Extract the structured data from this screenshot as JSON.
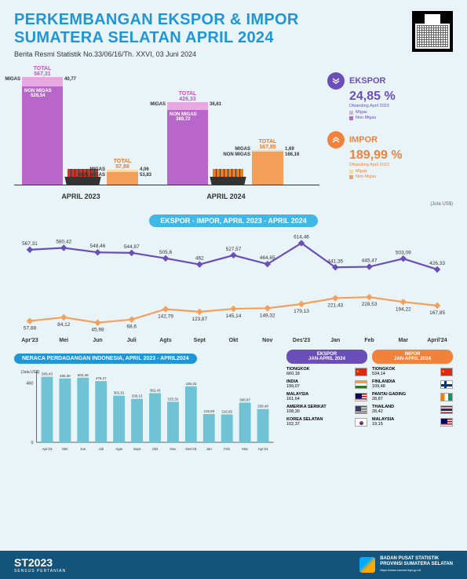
{
  "header": {
    "title_line1": "PERKEMBANGAN EKSPOR & IMPOR",
    "title_line2": "SUMATERA SELATAN APRIL 2024",
    "subtitle": "Berita Resmi Statistik No.33/06/16/Th. XXVI, 03 Juni 2024"
  },
  "colors": {
    "accent_blue": "#2196d4",
    "banner_blue": "#3fb8e8",
    "ekspor_migas": "#e8a9e0",
    "ekspor_nonmigas": "#b866c9",
    "impor_migas": "#ffd9a0",
    "impor_nonmigas": "#f5a05a",
    "kpi_ekspor": "#6b4fb8",
    "kpi_impor": "#f0823c",
    "total_pink": "#c94fb8",
    "total_orange": "#e87a2e",
    "line_ekspor": "#6b4fb8",
    "line_impor": "#f5a05a",
    "neraca_bar": "#6fc3d4",
    "footer": "#15547a"
  },
  "kpi": {
    "ekspor": {
      "label": "EKSPOR",
      "value": "24,85 %",
      "sub": "Dibanding April 2023",
      "arrow": "down",
      "legend": [
        {
          "label": "Migas",
          "color": "#e8a9e0"
        },
        {
          "label": "Non Migas",
          "color": "#b866c9"
        }
      ]
    },
    "impor": {
      "label": "IMPOR",
      "value": "189,99 %",
      "sub": "Dibanding April 2023",
      "arrow": "up",
      "legend": [
        {
          "label": "Migas",
          "color": "#ffd9a0"
        },
        {
          "label": "Non Migas",
          "color": "#f5a05a"
        }
      ]
    },
    "unit": "(Juta US$)"
  },
  "bars": {
    "april_2023": {
      "caption": "APRIL 2023",
      "ekspor": {
        "total": "567,31",
        "migas": "40,77",
        "migas_h": 12,
        "nonmigas": "526,54",
        "nonmigas_h": 125
      },
      "impor": {
        "total": "57,88",
        "migas": "4,06",
        "migas_h": 3,
        "nonmigas": "53,83",
        "nonmigas_h": 16
      }
    },
    "april_2024": {
      "caption": "APRIL 2024",
      "ekspor": {
        "total": "426,33",
        "migas": "36,61",
        "migas_h": 10,
        "nonmigas": "389,72",
        "nonmigas_h": 95
      },
      "impor": {
        "total": "167,85",
        "migas": "1,69",
        "migas_h": 2,
        "nonmigas": "166,16",
        "nonmigas_h": 42
      }
    }
  },
  "line_chart": {
    "title": "EKSPOR - IMPOR, APRIL 2023 - APRIL 2024",
    "months": [
      "Apr'23",
      "Mei",
      "Jun",
      "Juli",
      "Agts",
      "Sept",
      "Okt",
      "Nov",
      "Des'23",
      "Jan",
      "Feb",
      "Mar",
      "April'24"
    ],
    "ekspor_values": [
      567.31,
      580.42,
      548.46,
      544.87,
      505.6,
      462,
      527.57,
      464.65,
      614.46,
      441.35,
      445.47,
      503.09,
      426.33
    ],
    "ekspor_labels": [
      "567,31",
      "580,42",
      "548,46",
      "544,87",
      "505,6",
      "462",
      "527,57",
      "464,65",
      "614,46",
      "441,35",
      "445,47",
      "503,09",
      "426,33"
    ],
    "impor_values": [
      57.88,
      84.12,
      45.98,
      68.6,
      142.79,
      123.87,
      145.14,
      149.32,
      179.13,
      221.43,
      228.53,
      194.22,
      167.85
    ],
    "impor_labels": [
      "57,88",
      "84,12",
      "45,98",
      "68,6",
      "142,79",
      "123,87",
      "145,14",
      "149,32",
      "179,13",
      "221,43",
      "228,53",
      "194,22",
      "167,85"
    ],
    "y_max": 650,
    "y_min": 0
  },
  "neraca": {
    "title": "NERACA PERDAGANGAN INDONESIA, APRIL 2023 - APRIL2024",
    "ylabel": "(Juta US$)",
    "ytick": "460",
    "months": [
      "Apr'23",
      "Mei",
      "Jun",
      "Juli",
      "Agts",
      "Sept",
      "Okt",
      "Nov",
      "Des'23",
      "Jan",
      "Feb",
      "Mar",
      "Apr'24"
    ],
    "values": [
      509.43,
      496.3,
      502.48,
      476.27,
      362.81,
      338.13,
      382.43,
      315.32,
      435.33,
      219.93,
      216.95,
      308.87,
      258.48
    ],
    "labels": [
      "509,43",
      "496,30",
      "502,48",
      "476,27",
      "362,81",
      "338,13",
      "382,43",
      "315,32",
      "435,33",
      "219,93",
      "216,95",
      "308,87",
      "258,48"
    ],
    "y_max": 550
  },
  "partners": {
    "ekspor_header": "EKSPOR\nJAN-APRIL 2024",
    "impor_header": "IMPOR\nJAN-APRIL 2024",
    "ekspor": [
      {
        "name": "TIONGKOK",
        "val": "660,18",
        "flag": "cn"
      },
      {
        "name": "INDIA",
        "val": "199,07",
        "flag": "in"
      },
      {
        "name": "MALAYSIA",
        "val": "161,64",
        "flag": "my"
      },
      {
        "name": "AMERIKA SERIKAT",
        "val": "108,30",
        "flag": "us"
      },
      {
        "name": "KOREA SELATAN",
        "val": "102,37",
        "flag": "kr"
      }
    ],
    "impor": [
      {
        "name": "TIONGKOK",
        "val": "534,14",
        "flag": "cn"
      },
      {
        "name": "FINLANDIA",
        "val": "109,48",
        "flag": "fi"
      },
      {
        "name": "PANTAI GADING",
        "val": "28,87",
        "flag": "ci"
      },
      {
        "name": "THAILAND",
        "val": "28,42",
        "flag": "th"
      },
      {
        "name": "MALAYSIA",
        "val": "19,15",
        "flag": "my"
      }
    ]
  },
  "footer": {
    "brand": "ST2023",
    "brand_sub": "SENSUS PERTANIAN",
    "org_line1": "BADAN PUSAT STATISTIK",
    "org_line2": "PROVINSI SUMATERA SELATAN",
    "url": "https://www.sumsel.bps.go.id"
  }
}
